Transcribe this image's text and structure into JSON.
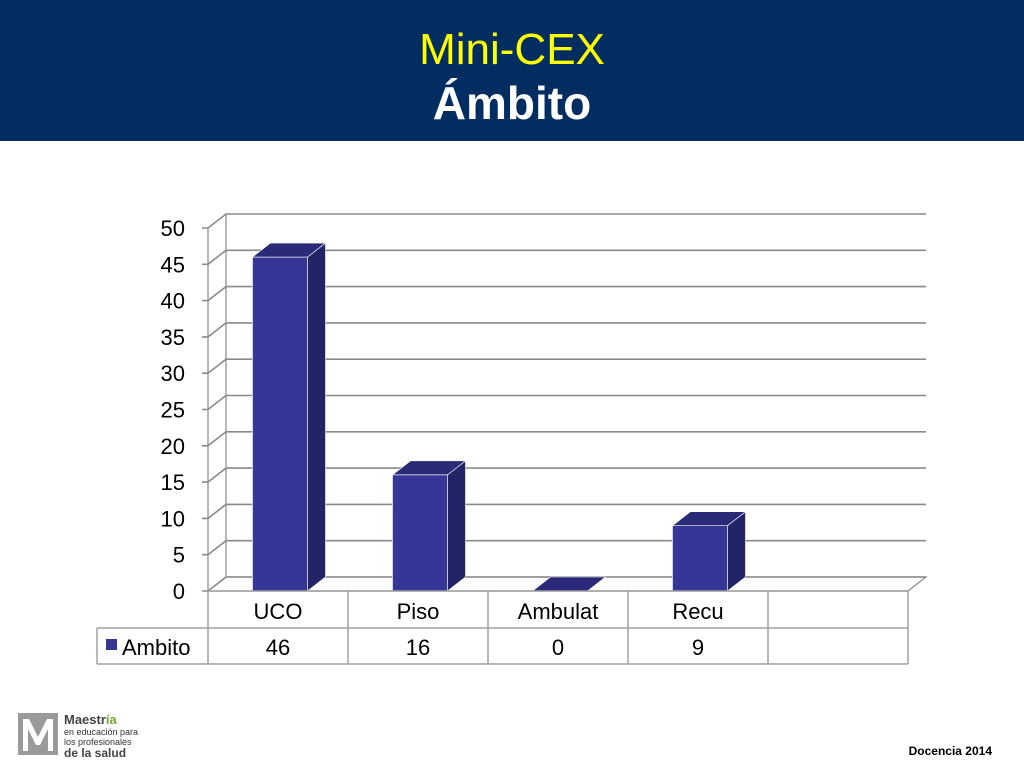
{
  "slide": {
    "title_line1": "Mini-CEX",
    "title_line2": "Ámbito",
    "footer": "Docencia 2014",
    "logo": {
      "name_part1": "Maestr",
      "name_part2": "ía",
      "line2": "en educación para",
      "line3": "los profesionales",
      "line4": "de la salud"
    }
  },
  "colors": {
    "header_bg": "#012d60",
    "title_line1": "#ffff00",
    "title_line2": "#ffffff",
    "bar_front": "#363696",
    "bar_top": "#2a2a78",
    "bar_side": "#232368",
    "grid": "#8a8a8a"
  },
  "chart_data": {
    "type": "bar",
    "style": "3d-column with data table",
    "categories": [
      "UCO",
      "Piso",
      "Ambulat",
      "Recu"
    ],
    "series": [
      {
        "name": "Ambito",
        "values": [
          46,
          16,
          0,
          9
        ]
      }
    ],
    "ylim": [
      0,
      50
    ],
    "yticks": [
      0,
      5,
      10,
      15,
      20,
      25,
      30,
      35,
      40,
      45,
      50
    ],
    "grid": true,
    "legend": "data-table-left"
  }
}
